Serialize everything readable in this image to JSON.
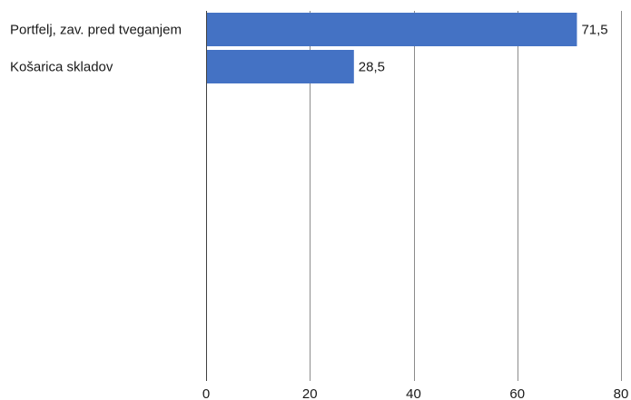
{
  "chart_data": {
    "type": "bar",
    "orientation": "horizontal",
    "title": "",
    "xlabel": "",
    "ylabel": "",
    "categories": [
      "Portfelj, zav. pred tveganjem",
      "Košarica skladov"
    ],
    "values": [
      71.5,
      28.5
    ],
    "value_labels": [
      "71,5",
      "28,5"
    ],
    "xlim": [
      0,
      80
    ],
    "x_ticks": [
      0,
      20,
      40,
      60,
      80
    ],
    "x_tick_labels": [
      "0",
      "20",
      "40",
      "60",
      "80"
    ],
    "grid": "vertical",
    "legend": "none",
    "bar_color": "#4472c4"
  }
}
